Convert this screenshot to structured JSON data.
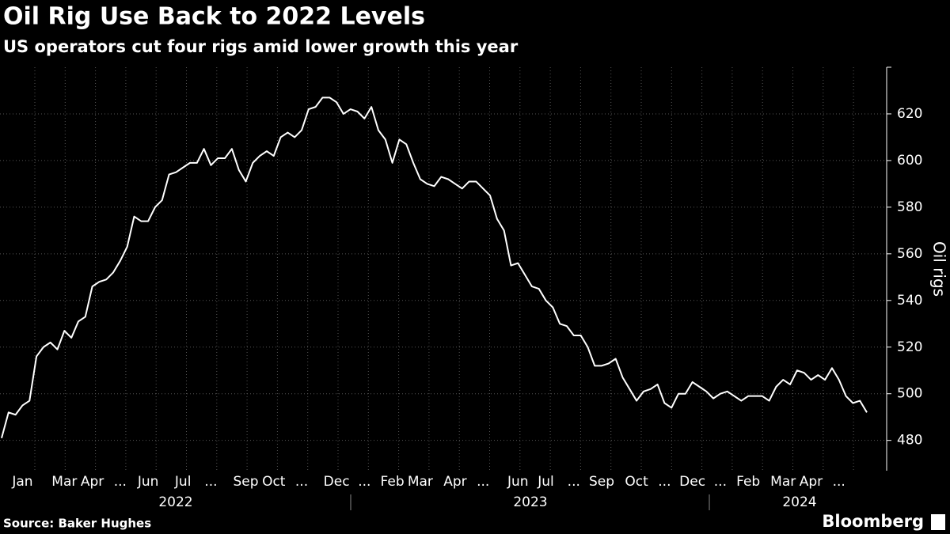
{
  "chart_data": {
    "type": "line",
    "title": "Oil Rig Use Back to 2022 Levels",
    "subtitle": "US operators cut four rigs amid lower growth this year",
    "y_label": "Oil rigs",
    "source": "Source: Baker Hughes",
    "brand": "Bloomberg",
    "years": [
      "2022",
      "2023",
      "2024"
    ],
    "categories": [
      null,
      null,
      null,
      "Jan",
      null,
      null,
      null,
      null,
      null,
      "Mar",
      null,
      null,
      null,
      "Apr",
      null,
      null,
      null,
      "...",
      null,
      null,
      null,
      "Jun",
      null,
      null,
      null,
      null,
      "Jul",
      null,
      null,
      null,
      "...",
      null,
      null,
      null,
      null,
      "Sep",
      null,
      null,
      null,
      "Oct",
      null,
      null,
      null,
      "...",
      null,
      null,
      null,
      null,
      "Dec",
      null,
      null,
      null,
      "...",
      null,
      null,
      null,
      "Feb",
      null,
      null,
      null,
      "Mar",
      null,
      null,
      null,
      null,
      "Apr",
      null,
      null,
      null,
      "...",
      null,
      null,
      null,
      null,
      "Jun",
      null,
      null,
      null,
      "Jul",
      null,
      null,
      null,
      "...",
      null,
      null,
      null,
      "Sep",
      null,
      null,
      null,
      null,
      "Oct",
      null,
      null,
      null,
      "...",
      null,
      null,
      null,
      "Dec",
      null,
      null,
      null,
      "...",
      null,
      null,
      null,
      "Feb",
      null,
      null,
      null,
      null,
      "Mar",
      null,
      null,
      null,
      "Apr",
      null,
      null,
      null,
      "...",
      null,
      null,
      null,
      null
    ],
    "series": [
      {
        "name": "Oil rigs",
        "color": "#ffffff",
        "values": [
          481,
          492,
          491,
          495,
          497,
          516,
          520,
          522,
          519,
          527,
          524,
          531,
          533,
          546,
          548,
          549,
          552,
          557,
          563,
          576,
          574,
          574,
          580,
          583,
          594,
          595,
          597,
          599,
          599,
          605,
          598,
          601,
          601,
          605,
          596,
          591,
          599,
          602,
          604,
          602,
          610,
          612,
          610,
          613,
          622,
          623,
          627,
          627,
          625,
          620,
          622,
          621,
          618,
          623,
          613,
          609,
          599,
          609,
          607,
          599,
          592,
          590,
          589,
          593,
          592,
          590,
          588,
          591,
          591,
          588,
          585,
          575,
          570,
          555,
          556,
          551,
          546,
          545,
          540,
          537,
          530,
          529,
          525,
          525,
          520,
          512,
          512,
          513,
          515,
          507,
          502,
          497,
          501,
          502,
          504,
          496,
          494,
          500,
          500,
          505,
          503,
          501,
          498,
          500,
          501,
          499,
          497,
          499,
          499,
          499,
          497,
          503,
          506,
          504,
          510,
          509,
          506,
          508,
          506,
          511,
          506,
          499,
          496,
          497,
          492
        ]
      }
    ],
    "ylim": [
      467,
      640
    ],
    "yticks": [
      480,
      500,
      520,
      540,
      560,
      580,
      600,
      620
    ],
    "grid": true
  }
}
